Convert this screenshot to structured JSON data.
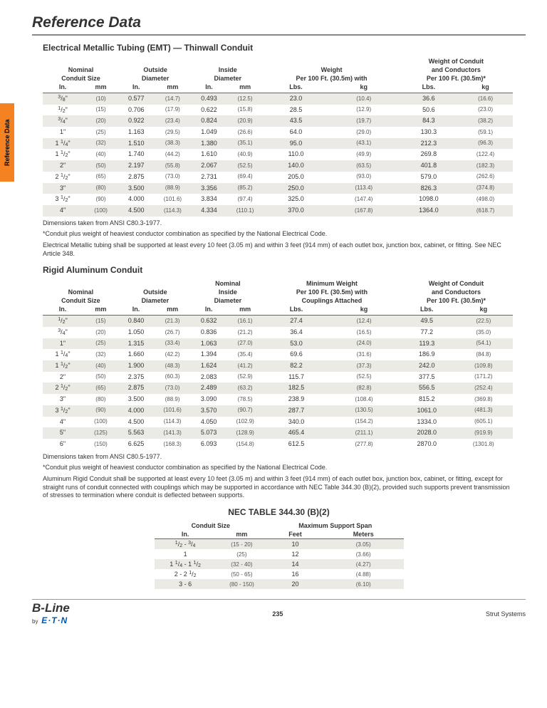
{
  "title": "Reference Data",
  "sideTab": "Reference Data",
  "section1": {
    "title": "Electrical Metallic Tubing (EMT) — Thinwall Conduit",
    "headers": {
      "col1": "Nominal\nConduit Size",
      "col2": "Outside\nDiameter",
      "col3": "Inside\nDiameter",
      "col4": "Weight\nPer 100 Ft. (30.5m) with",
      "col5": "Weight of Conduit\nand Conductors\nPer 100 Ft. (30.5m)*"
    },
    "units": [
      "In.",
      "mm",
      "In.",
      "mm",
      "In.",
      "mm",
      "Lbs.",
      "kg",
      "Lbs.",
      "kg"
    ],
    "rows": [
      [
        "3/8\"",
        "(10)",
        "0.577",
        "(14.7)",
        "0.493",
        "(12.5)",
        "23.0",
        "(10.4)",
        "36.6",
        "(16.6)"
      ],
      [
        "1/2\"",
        "(15)",
        "0.706",
        "(17.9)",
        "0.622",
        "(15.8)",
        "28.5",
        "(12.9)",
        "50.6",
        "(23.0)"
      ],
      [
        "3/4\"",
        "(20)",
        "0.922",
        "(23.4)",
        "0.824",
        "(20.9)",
        "43.5",
        "(19.7)",
        "84.3",
        "(38.2)"
      ],
      [
        "1\"",
        "(25)",
        "1.163",
        "(29.5)",
        "1.049",
        "(26.6)",
        "64.0",
        "(29.0)",
        "130.3",
        "(59.1)"
      ],
      [
        "1 1/4\"",
        "(32)",
        "1.510",
        "(38.3)",
        "1.380",
        "(35.1)",
        "95.0",
        "(43.1)",
        "212.3",
        "(96.3)"
      ],
      [
        "1 1/2\"",
        "(40)",
        "1.740",
        "(44.2)",
        "1.610",
        "(40.9)",
        "110.0",
        "(49.9)",
        "269.8",
        "(122.4)"
      ],
      [
        "2\"",
        "(50)",
        "2.197",
        "(55.8)",
        "2.067",
        "(52.5)",
        "140.0",
        "(63.5)",
        "401.8",
        "(182.3)"
      ],
      [
        "2 1/2\"",
        "(65)",
        "2.875",
        "(73.0)",
        "2.731",
        "(69.4)",
        "205.0",
        "(93.0)",
        "579.0",
        "(262.6)"
      ],
      [
        "3\"",
        "(80)",
        "3.500",
        "(88.9)",
        "3.356",
        "(85.2)",
        "250.0",
        "(113.4)",
        "826.3",
        "(374.8)"
      ],
      [
        "3 1/2\"",
        "(90)",
        "4.000",
        "(101.6)",
        "3.834",
        "(97.4)",
        "325.0",
        "(147.4)",
        "1098.0",
        "(498.0)"
      ],
      [
        "4\"",
        "(100)",
        "4.500",
        "(114.3)",
        "4.334",
        "(110.1)",
        "370.0",
        "(167.8)",
        "1364.0",
        "(618.7)"
      ]
    ],
    "notes": [
      "Dimensions taken from ANSI C80.3-1977.",
      "*Conduit plus weight of heaviest conductor combination as specified by the National Electrical Code.",
      "Electrical Metallic tubing shall be supported at least every 10 feet (3.05 m) and within 3 feet (914 mm) of each outlet box, junction box, cabinet, or fitting. See NEC Article 348."
    ]
  },
  "section2": {
    "title": "Rigid Aluminum Conduit",
    "headers": {
      "col1": "Nominal\nConduit Size",
      "col2": "Outside\nDiameter",
      "col3": "Nominal\nInside\nDiameter",
      "col4": "Minimum Weight\nPer 100 Ft. (30.5m) with\nCouplings Attached",
      "col5": "Weight of Conduit\nand Conductors\nPer 100 Ft. (30.5m)*"
    },
    "units": [
      "In.",
      "mm",
      "In.",
      "mm",
      "In.",
      "mm",
      "Lbs.",
      "kg",
      "Lbs.",
      "kg"
    ],
    "rows": [
      [
        "1/2\"",
        "(15)",
        "0.840",
        "(21.3)",
        "0.632",
        "(16.1)",
        "27.4",
        "(12.4)",
        "49.5",
        "(22.5)"
      ],
      [
        "3/4\"",
        "(20)",
        "1.050",
        "(26.7)",
        "0.836",
        "(21.2)",
        "36.4",
        "(16.5)",
        "77.2",
        "(35.0)"
      ],
      [
        "1\"",
        "(25)",
        "1.315",
        "(33.4)",
        "1.063",
        "(27.0)",
        "53.0",
        "(24.0)",
        "119.3",
        "(54.1)"
      ],
      [
        "1 1/4\"",
        "(32)",
        "1.660",
        "(42.2)",
        "1.394",
        "(35.4)",
        "69.6",
        "(31.6)",
        "186.9",
        "(84.8)"
      ],
      [
        "1 1/2\"",
        "(40)",
        "1.900",
        "(48.3)",
        "1.624",
        "(41.2)",
        "82.2",
        "(37.3)",
        "242.0",
        "(109.8)"
      ],
      [
        "2\"",
        "(50)",
        "2.375",
        "(60.3)",
        "2.083",
        "(52.9)",
        "115.7",
        "(52.5)",
        "377.5",
        "(171.2)"
      ],
      [
        "2 1/2\"",
        "(65)",
        "2.875",
        "(73.0)",
        "2.489",
        "(63.2)",
        "182.5",
        "(82.8)",
        "556.5",
        "(252.4)"
      ],
      [
        "3\"",
        "(80)",
        "3.500",
        "(88.9)",
        "3.090",
        "(78.5)",
        "238.9",
        "(108.4)",
        "815.2",
        "(369.8)"
      ],
      [
        "3 1/2\"",
        "(90)",
        "4.000",
        "(101.6)",
        "3.570",
        "(90.7)",
        "287.7",
        "(130.5)",
        "1061.0",
        "(481.3)"
      ],
      [
        "4\"",
        "(100)",
        "4.500",
        "(114.3)",
        "4.050",
        "(102.9)",
        "340.0",
        "(154.2)",
        "1334.0",
        "(605.1)"
      ],
      [
        "5\"",
        "(125)",
        "5.563",
        "(141.3)",
        "5.073",
        "(128.9)",
        "465.4",
        "(211.1)",
        "2028.0",
        "(919.9)"
      ],
      [
        "6\"",
        "(150)",
        "6.625",
        "(168.3)",
        "6.093",
        "(154.8)",
        "612.5",
        "(277.8)",
        "2870.0",
        "(1301.8)"
      ]
    ],
    "notes": [
      "Dimensions taken from ANSI C80.5-1977.",
      "*Conduit plus weight of heaviest conductor combination as specified by the National Electrical Code.",
      "Aluminum Rigid Conduit shall be supported at least every 10 feet (3.05 m) and within 3 feet (914 mm) of each outlet box, junction box, cabinet, or fitting, except for straight runs of conduit connected with couplings which may be supported in accordance with NEC Table 344.30 (B)(2), provided such supports prevent transmission of stresses to termination where conduit is deflected between supports."
    ]
  },
  "section3": {
    "title": "NEC TABLE 344.30 (B)(2)",
    "headers": {
      "col1": "Conduit Size",
      "col2": "Maximum Support Span"
    },
    "units": [
      "In.",
      "mm",
      "Feet",
      "Meters"
    ],
    "rows": [
      [
        "1/2 - 3/4",
        "(15 - 20)",
        "10",
        "(3.05)"
      ],
      [
        "1",
        "(25)",
        "12",
        "(3.66)"
      ],
      [
        "1 1/4 - 1 1/2",
        "(32 - 40)",
        "14",
        "(4.27)"
      ],
      [
        "2 - 2 1/2",
        "(50 - 65)",
        "16",
        "(4.88)"
      ],
      [
        "3 - 6",
        "(80 - 150)",
        "20",
        "(6.10)"
      ]
    ]
  },
  "footer": {
    "brand": "B-Line",
    "by": "by",
    "parent": "E·T·N",
    "page": "235",
    "right": "Strut Systems"
  },
  "colors": {
    "accent": "#f58220",
    "shade": "#eceae5",
    "rule": "#666",
    "eaton": "#0057a8"
  }
}
